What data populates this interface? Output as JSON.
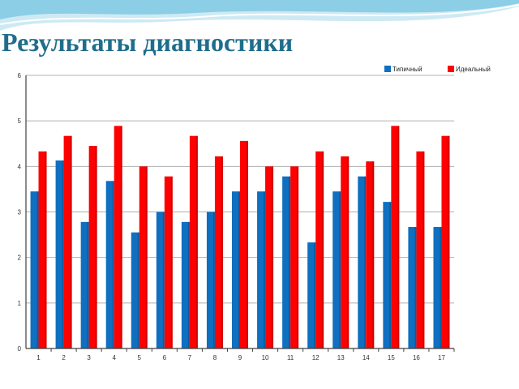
{
  "slide": {
    "title": "Результаты диагностики"
  },
  "colors": {
    "title": "#1f6d8c",
    "wave_light": "#cdeaf4",
    "wave_mid": "#7fc9e2",
    "series_typical": "#0f6fc0",
    "series_ideal": "#ff0000",
    "grid": "#b0b0b0",
    "axis": "#404040"
  },
  "chart_data": {
    "type": "bar",
    "title": "",
    "xlabel": "",
    "ylabel": "",
    "ylim": [
      0,
      6
    ],
    "yticks": [
      "0",
      "1",
      "2",
      "3",
      "4",
      "5",
      "6"
    ],
    "grid": true,
    "legend_position": "top-right",
    "categories": [
      "1",
      "2",
      "3",
      "4",
      "5",
      "6",
      "7",
      "8",
      "9",
      "10",
      "11",
      "12",
      "13",
      "14",
      "15",
      "16",
      "17"
    ],
    "series": [
      {
        "name": "Типичный",
        "color": "#0f6fc0",
        "values": [
          3.45,
          4.13,
          2.78,
          3.68,
          2.55,
          3.0,
          2.78,
          3.0,
          3.45,
          3.45,
          3.78,
          2.33,
          3.45,
          3.78,
          3.22,
          2.67,
          2.67
        ]
      },
      {
        "name": "Идеальный",
        "color": "#ff0000",
        "values": [
          4.33,
          4.67,
          4.45,
          4.89,
          4.0,
          3.78,
          4.67,
          4.22,
          4.56,
          4.0,
          4.0,
          4.33,
          4.22,
          4.11,
          4.89,
          4.33,
          4.67
        ]
      }
    ]
  }
}
